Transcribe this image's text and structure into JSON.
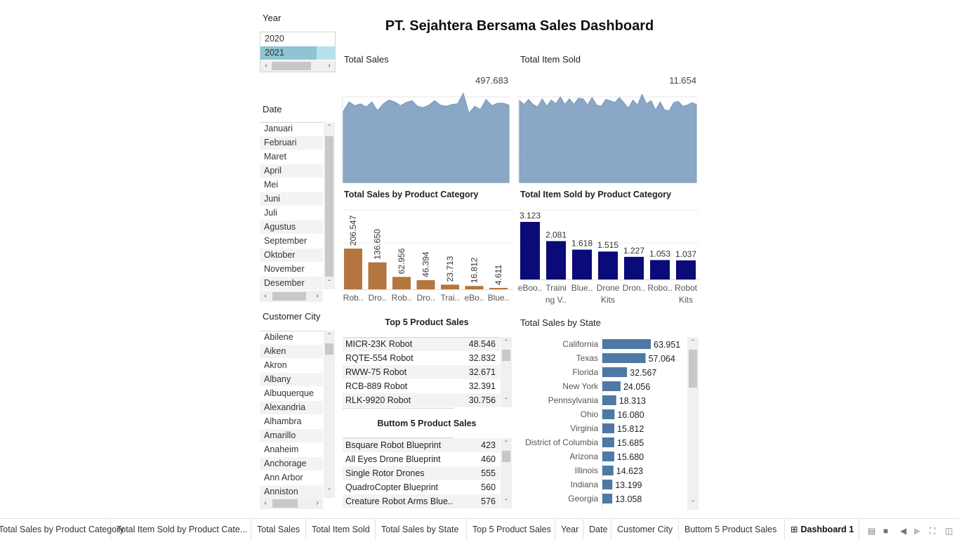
{
  "dashboard": {
    "title": "PT. Sejahtera Bersama Sales Dashboard"
  },
  "colors": {
    "area": "#8aa7c6",
    "bar_orange": "#b5753e",
    "bar_navy": "#0a0a78",
    "hbar": "#4e79a7",
    "selected": "#8ec4d3"
  },
  "filters": {
    "year": {
      "label": "Year",
      "options": [
        "2020",
        "2021"
      ],
      "selected": "2021"
    },
    "date": {
      "label": "Date",
      "options": [
        "Januari",
        "Februari",
        "Maret",
        "April",
        "Mei",
        "Juni",
        "Juli",
        "Agustus",
        "September",
        "Oktober",
        "November",
        "Desember"
      ]
    },
    "city": {
      "label": "Customer City",
      "options": [
        "Abilene",
        "Aiken",
        "Akron",
        "Albany",
        "Albuquerque",
        "Alexandria",
        "Alhambra",
        "Amarillo",
        "Anaheim",
        "Anchorage",
        "Ann Arbor",
        "Anniston"
      ]
    }
  },
  "kpis": {
    "sales": {
      "label": "Total Sales",
      "value": "497.683"
    },
    "items": {
      "label": "Total Item Sold",
      "value": "11.654"
    }
  },
  "chart_data": [
    {
      "type": "area",
      "name_key": "total-sales-area",
      "title": "Total Sales",
      "values": [
        13,
        28,
        22,
        25,
        20,
        28,
        14,
        25,
        31,
        28,
        22,
        27,
        30,
        21,
        19,
        23,
        30,
        23,
        21,
        24,
        25,
        42,
        10,
        21,
        16,
        32,
        22,
        26,
        26,
        23
      ]
    },
    {
      "type": "area",
      "name_key": "total-items-area",
      "title": "Total Item Sold",
      "values": [
        30,
        24,
        32,
        24,
        20,
        33,
        21,
        31,
        25,
        36,
        24,
        33,
        24,
        34,
        33,
        23,
        35,
        23,
        21,
        32,
        30,
        27,
        35,
        27,
        18,
        31,
        23,
        40,
        25,
        30,
        15,
        28,
        15,
        14,
        27,
        29,
        21,
        23,
        27,
        24
      ]
    },
    {
      "type": "bar",
      "title": "Total Sales  by Product Category",
      "categories": [
        "Rob..",
        "Dro..",
        "Rob..",
        "Dro..",
        "Trai..",
        "eBo..",
        "Blue.."
      ],
      "values": [
        206547,
        136650,
        62956,
        46394,
        23713,
        16812,
        4611
      ],
      "labels": [
        "206.547",
        "136.650",
        "62.956",
        "46.394",
        "23.713",
        "16.812",
        "4.611"
      ]
    },
    {
      "type": "bar",
      "title": "Total Item Sold by Product Category",
      "categories": [
        [
          "eBoo.."
        ],
        [
          "Traini",
          "ng V.."
        ],
        [
          "Blue.."
        ],
        [
          "Drone",
          "Kits"
        ],
        [
          "Dron.."
        ],
        [
          "Robo.."
        ],
        [
          "Robot",
          "Kits"
        ]
      ],
      "values": [
        3123,
        2081,
        1618,
        1515,
        1227,
        1053,
        1037
      ],
      "labels": [
        "3.123",
        "2.081",
        "1.618",
        "1.515",
        "1.227",
        "1.053",
        "1.037"
      ]
    },
    {
      "type": "bar",
      "orientation": "horizontal",
      "title": "Total Sales by State",
      "categories": [
        "California",
        "Texas",
        "Florida",
        "New York",
        "Pennsylvania",
        "Ohio",
        "Virginia",
        "District of Columbia",
        "Arizona",
        "Illinois",
        "Indiana",
        "Georgia"
      ],
      "values": [
        63951,
        57064,
        32567,
        24056,
        18313,
        16080,
        15812,
        15685,
        15680,
        14623,
        13199,
        13058
      ],
      "labels": [
        "63.951",
        "57.064",
        "32.567",
        "24.056",
        "18.313",
        "16.080",
        "15.812",
        "15.685",
        "15.680",
        "14.623",
        "13.199",
        "13.058"
      ]
    }
  ],
  "top5": {
    "title": "Top 5 Product Sales",
    "rows": [
      {
        "name": "MICR-23K Robot",
        "value": "48.546"
      },
      {
        "name": "RQTE-554 Robot",
        "value": "32.832"
      },
      {
        "name": "RWW-75 Robot",
        "value": "32.671"
      },
      {
        "name": "RCB-889 Robot",
        "value": "32.391"
      },
      {
        "name": "RLK-9920 Robot",
        "value": "30.756"
      }
    ]
  },
  "bottom5": {
    "title": "Buttom 5 Product Sales",
    "rows": [
      {
        "name": "Bsquare Robot Blueprint",
        "value": "423"
      },
      {
        "name": "All Eyes Drone Blueprint",
        "value": "460"
      },
      {
        "name": "Single Rotor Drones",
        "value": "555"
      },
      {
        "name": "QuadroCopter Blueprint",
        "value": "560"
      },
      {
        "name": "Creature Robot Arms Blue..",
        "value": "576"
      }
    ]
  },
  "tabs": [
    "Total Sales  by Product Category",
    "Total Item Sold by Product Cate...",
    "Total Sales",
    "Total Item Sold",
    "Total Sales by State",
    "Top 5 Product Sales",
    "Year",
    "Date",
    "Customer City",
    "Buttom 5 Product Sales",
    "Dashboard 1"
  ],
  "active_tab": "Dashboard 1"
}
